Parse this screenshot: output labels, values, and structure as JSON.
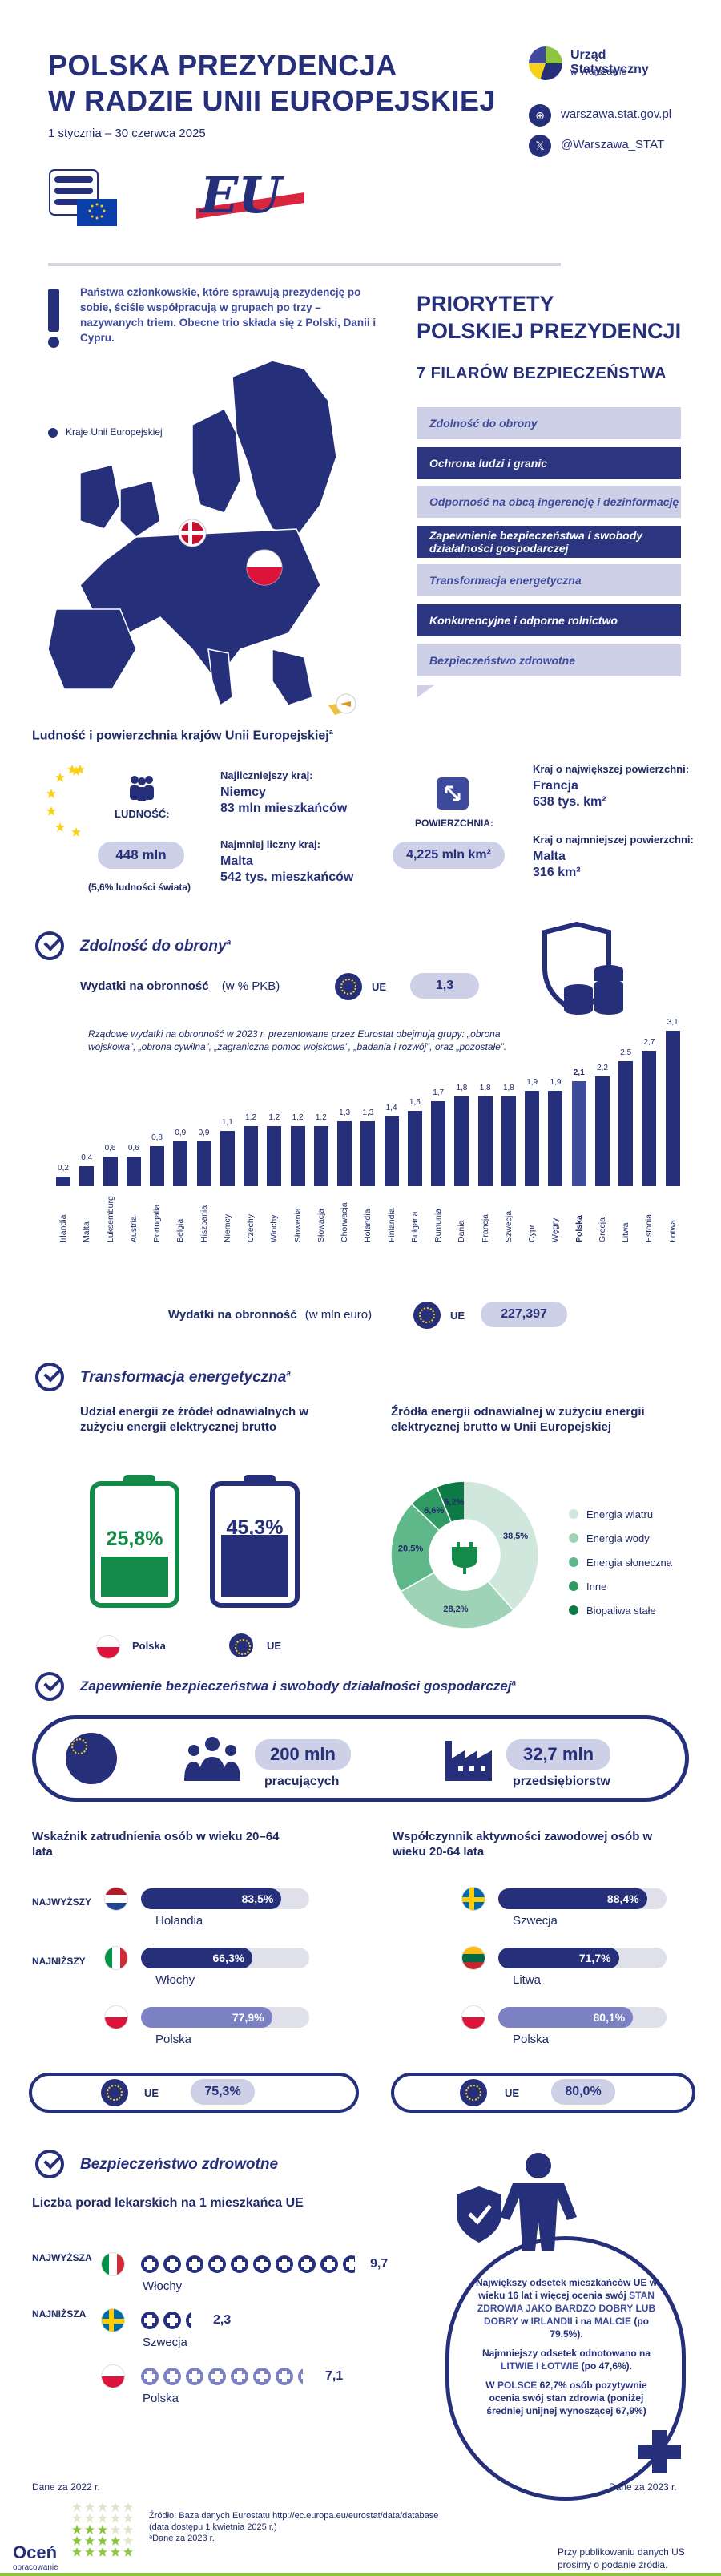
{
  "header": {
    "title_line1": "POLSKA PREZYDENCJA",
    "title_line2": "W RADZIE UNII EUROPEJSKIEJ",
    "date_range": "1 stycznia – 30 czerwca 2025",
    "gus_name": "Urząd Statystyczny",
    "gus_sub": "w Warszawie",
    "website": "warszawa.stat.gov.pl",
    "twitter": "@Warszawa_STAT"
  },
  "intro": {
    "trio_text": "Państwa członkowskie, które sprawują prezydencję po sobie, ściśle współpracują w grupach po trzy – nazywanych triem. Obecne trio składa się z Polski, Danii i Cypru.",
    "legend_eu": "Kraje Unii Europejskiej"
  },
  "priorities": {
    "title_line1": "PRIORYTETY",
    "title_line2": "POLSKIEJ PREZYDENCJI",
    "subtitle": "7 FILARÓW BEZPIECZEŃSTWA",
    "pillars": [
      {
        "label": "Zdolność do obrony",
        "style": "light"
      },
      {
        "label": "Ochrona ludzi i granic",
        "style": "dark"
      },
      {
        "label": "Odporność na obcą ingerencję i dezinformację",
        "style": "light"
      },
      {
        "label": "Zapewnienie bezpieczeństwa i swobody działalności gospodarczej",
        "style": "dark"
      },
      {
        "label": "Transformacja energetyczna",
        "style": "light"
      },
      {
        "label": "Konkurencyjne i odporne rolnictwo",
        "style": "dark"
      },
      {
        "label": "Bezpieczeństwo zdrowotne",
        "style": "light"
      }
    ]
  },
  "population": {
    "heading": "Ludność i powierzchnia krajów Unii Europejskiej",
    "heading_sup": "a",
    "pop_label": "LUDNOŚĆ:",
    "pop_value": "448 mln",
    "pop_note": "(5,6% ludności świata)",
    "largest_pop_label": "Najliczniejszy kraj:",
    "largest_pop_country": "Niemcy",
    "largest_pop_value": "83 mln mieszkańców",
    "smallest_pop_label": "Najmniej liczny kraj:",
    "smallest_pop_country": "Malta",
    "smallest_pop_value": "542 tys. mieszkańców",
    "area_label": "POWIERZCHNIA:",
    "area_value": "4,225 mln km²",
    "largest_area_label": "Kraj o największej powierzchni:",
    "largest_area_country": "Francja",
    "largest_area_value": "638 tys. km²",
    "smallest_area_label": "Kraj o najmniejszej powierzchni:",
    "smallest_area_country": "Malta",
    "smallest_area_value": "316 km²"
  },
  "defence": {
    "title": "Zdolność do obrony",
    "title_sup": "a",
    "spend_label": "Wydatki na obronność",
    "spend_unit": "(w % PKB)",
    "eu_label": "UE",
    "eu_pct": "1,3",
    "note": "Rządowe wydatki na obronność w 2023 r. prezentowane przez Eurostat obejmują grupy: „obrona wojskowa”, „obrona cywilna”, „zagraniczna pomoc wojskowa”, „badania i rozwój”, oraz „pozostałe”.",
    "spend_euro_label": "Wydatki na obronność",
    "spend_euro_unit": "(w mln euro)",
    "eu_euro": "227,397"
  },
  "chart_data": {
    "type": "bar",
    "categories": [
      "Irlandia",
      "Malta",
      "Luksemburg",
      "Austria",
      "Portugalia",
      "Belgia",
      "Hiszpania",
      "Niemcy",
      "Czechy",
      "Włochy",
      "Słowenia",
      "Słowacja",
      "Chorwacja",
      "Holandia",
      "Finlandia",
      "Bułgaria",
      "Rumunia",
      "Dania",
      "Francja",
      "Szwecja",
      "Cypr",
      "Węgry",
      "Polska",
      "Grecja",
      "Litwa",
      "Estonia",
      "Łotwa"
    ],
    "values": [
      0.2,
      0.4,
      0.6,
      0.6,
      0.8,
      0.9,
      0.9,
      1.1,
      1.2,
      1.2,
      1.2,
      1.2,
      1.3,
      1.3,
      1.4,
      1.5,
      1.7,
      1.8,
      1.8,
      1.8,
      1.9,
      1.9,
      2.1,
      2.2,
      2.5,
      2.7,
      3.1
    ],
    "value_labels": [
      "0,2",
      "0,4",
      "0,6",
      "0,6",
      "0,8",
      "0,9",
      "0,9",
      "1,1",
      "1,2",
      "1,2",
      "1,2",
      "1,2",
      "1,3",
      "1,3",
      "1,4",
      "1,5",
      "1,7",
      "1,8",
      "1,8",
      "1,8",
      "1,9",
      "1,9",
      "2,1",
      "2,2",
      "2,5",
      "2,7",
      "3,1"
    ],
    "highlight": "Polska",
    "title": "",
    "xlabel": "",
    "ylabel": "",
    "ylim": [
      0,
      3.2
    ]
  },
  "energy": {
    "title": "Transformacja energetyczna",
    "title_sup": "a",
    "share_heading": "Udział energii ze źródeł odnawialnych w zużyciu energii elektrycznej brutto",
    "pl_value": "25,8%",
    "pl_fraction": 0.258,
    "pl_label": "Polska",
    "eu_value": "45,3%",
    "eu_fraction": 0.453,
    "eu_label": "UE",
    "sources_heading": "Źródła energii odnawialnej w zużyciu energii elektrycznej brutto w Unii Europejskiej",
    "sources": [
      {
        "name": "Energia wiatru",
        "value": 38.5,
        "label": "38,5%",
        "color": "#cfe7dc"
      },
      {
        "name": "Energia wody",
        "value": 28.2,
        "label": "28,2%",
        "color": "#9fd3b7"
      },
      {
        "name": "Energia słoneczna",
        "value": 20.5,
        "label": "20,5%",
        "color": "#5fb88a"
      },
      {
        "name": "Inne",
        "value": 6.6,
        "label": "6,6%",
        "color": "#2e9b63"
      },
      {
        "name": "Biopaliwa stałe",
        "value": 6.2,
        "label": "6,2%",
        "color": "#0d7a45"
      }
    ]
  },
  "economy": {
    "title": "Zapewnienie bezpieczeństwa i swobody działalności gospodarczej",
    "title_sup": "a",
    "workers_value": "200 mln",
    "workers_label": "pracujących",
    "firms_value": "32,7 mln",
    "firms_label": "przedsiębiorstw",
    "employment_heading": "Wskaźnik zatrudnienia osób w wieku 20–64 lata",
    "activity_heading": "Współczynnik aktywności zawodowej osób w wieku 20-64 lata",
    "highest_tag": "NAJWYŻSZY",
    "lowest_tag": "NAJNIŻSZY",
    "employment": [
      {
        "country": "Holandia",
        "value": 83.5,
        "label": "83,5%",
        "flag": "nl"
      },
      {
        "country": "Włochy",
        "value": 66.3,
        "label": "66,3%",
        "flag": "it"
      },
      {
        "country": "Polska",
        "value": 77.9,
        "label": "77,9%",
        "flag": "pl"
      }
    ],
    "employment_eu_label": "UE",
    "employment_eu": "75,3%",
    "activity": [
      {
        "country": "Szwecja",
        "value": 88.4,
        "label": "88,4%",
        "flag": "se"
      },
      {
        "country": "Litwa",
        "value": 71.7,
        "label": "71,7%",
        "flag": "lt"
      },
      {
        "country": "Polska",
        "value": 80.1,
        "label": "80,1%",
        "flag": "pl"
      }
    ],
    "activity_eu_label": "UE",
    "activity_eu": "80,0%"
  },
  "health": {
    "title": "Bezpieczeństwo zdrowotne",
    "consult_heading": "Liczba porad lekarskich na 1 mieszkańca UE",
    "highest_tag": "NAJWYŻSZA",
    "lowest_tag": "NAJNIŻSZA",
    "consults": [
      {
        "country": "Włochy",
        "value": 9.7,
        "label": "9,7",
        "flag": "it"
      },
      {
        "country": "Szwecja",
        "value": 2.3,
        "label": "2,3",
        "flag": "se"
      },
      {
        "country": "Polska",
        "value": 7.1,
        "label": "7,1",
        "flag": "pl"
      }
    ],
    "box_p1_a": "Największy odsetek mieszkańców UE w wieku 16 lat i więcej ocenia swój ",
    "box_p1_b": "STAN ZDROWIA JAKO BARDZO DOBRY LUB DOBRY",
    "box_p1_c": " w ",
    "box_p1_d": "IRLANDII",
    "box_p1_e": " i na ",
    "box_p1_f": "MALCIE",
    "box_p1_g": " (po 79,5%).",
    "box_p2_a": "Najmniejszy odsetek odnotowano na ",
    "box_p2_b": "LITWIE I ŁOTWIE",
    "box_p2_c": " (po 47,6%).",
    "box_p3_a": "W ",
    "box_p3_b": "POLSCE",
    "box_p3_c": " 62,7% osób pozytywnie ocenia swój stan zdrowia (poniżej średniej unijnej wynoszącej 67,9%)",
    "data_2022": "Dane za 2022 r.",
    "data_2023": "Dane za 2023 r."
  },
  "footer": {
    "source_line1": "Źródło: Baza danych Eurostatu http://ec.europa.eu/eurostat/data/database",
    "source_line2": "(data dostępu 1 kwietnia 2025 r.)",
    "source_line3": "ᵃDane za 2023 r.",
    "rate_label": "Oceń",
    "rate_sub": "opracowanie",
    "publish_line1": "Przy publikowaniu danych US",
    "publish_line2": "prosimy o podanie źródła."
  }
}
